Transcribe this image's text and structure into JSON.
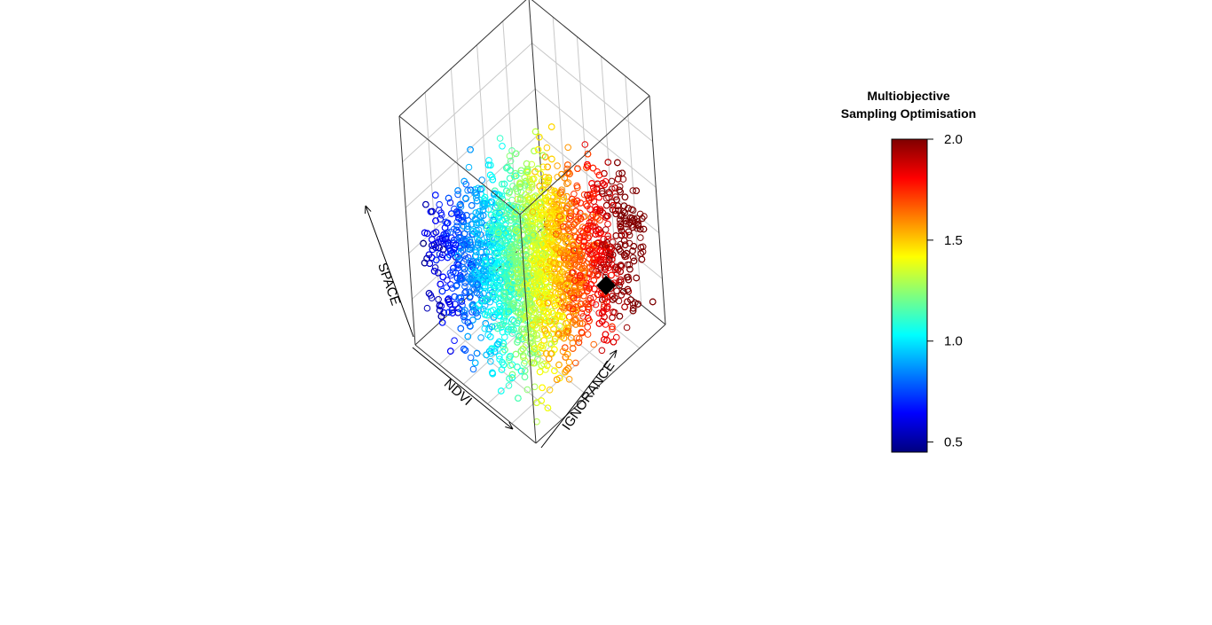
{
  "chart_data": {
    "type": "scatter",
    "projection": "3d",
    "title": "",
    "axes": {
      "x_label": "NDVI",
      "y_label": "IGNORANCE",
      "z_label": "SPACE",
      "x_range": [
        0,
        1
      ],
      "y_range": [
        0,
        1
      ],
      "z_range": [
        0,
        1
      ]
    },
    "grid": true,
    "marker": "open-circle",
    "color_variable_range": [
      0.45,
      2.0
    ],
    "highlight_point": {
      "x": 0.98,
      "y": 0.92,
      "z": 0.55,
      "marker": "filled-diamond",
      "color": "#000000"
    },
    "point_cloud": {
      "count": 5200,
      "description_free": true
    },
    "legend": {
      "placement": "right",
      "title_line1": "Multiobjective",
      "title_line2": "Sampling Optimisation",
      "ticks": [
        "2.0",
        "1.5",
        "1.0",
        "0.5"
      ],
      "tick_values": [
        2.0,
        1.5,
        1.0,
        0.5
      ],
      "colormap": [
        "#00007F",
        "#0000FF",
        "#007FFF",
        "#00FFFF",
        "#7FFF7F",
        "#FFFF00",
        "#FF7F00",
        "#FF0000",
        "#7F0000"
      ]
    }
  }
}
